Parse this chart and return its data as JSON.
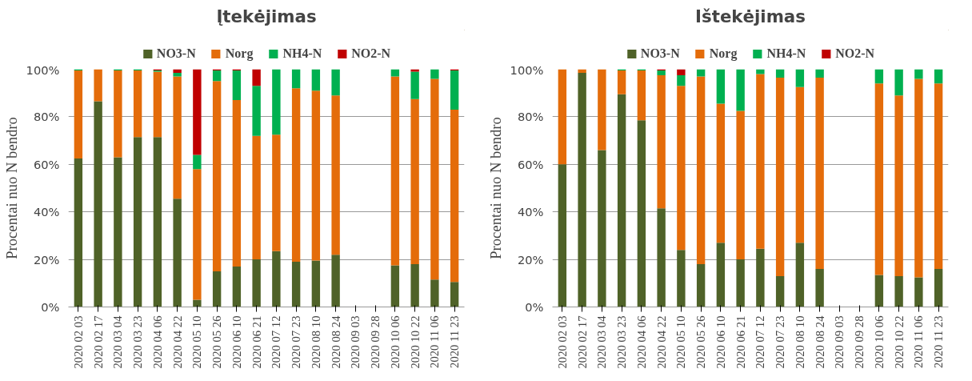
{
  "chart_data": [
    {
      "type": "bar",
      "title": "Įtekėjimas",
      "ylabel": "Procentai nuo N bendro",
      "stacked": true,
      "legend": "top",
      "grid": "y",
      "categories": [
        "2020 02 03",
        "2020 02 17",
        "2020 03 04",
        "2020 03 23",
        "2020 04 06",
        "2020 04 22",
        "2020 05 10",
        "2020 05 26",
        "2020 06 10",
        "2020 06 21",
        "2020 07 12",
        "2020 07 23",
        "2020 08 10",
        "2020 08 24",
        "2020 09 03",
        "2020 09 28",
        "2020 10 06",
        "2020 10 22",
        "2020 11 06",
        "2020 11 23"
      ],
      "ylim": [
        0,
        100
      ],
      "yticks": [
        {
          "value": 0,
          "label": "0%"
        },
        {
          "value": 20,
          "label": "20%"
        },
        {
          "value": 40,
          "label": "40%"
        },
        {
          "value": 60,
          "label": "60%"
        },
        {
          "value": 80,
          "label": "80%"
        },
        {
          "value": 100,
          "label": "100%"
        }
      ],
      "series": [
        {
          "name": "NO3-N",
          "color": "#4f6228",
          "values": [
            62.5,
            86.5,
            63,
            71.5,
            71.5,
            45.5,
            3,
            15,
            17,
            20,
            23.5,
            19,
            19.5,
            22,
            null,
            null,
            17.5,
            18,
            11.5,
            10.5
          ]
        },
        {
          "name": "Norg",
          "color": "#e46c0a",
          "values": [
            37,
            13.5,
            36.5,
            28,
            27.5,
            51.5,
            55,
            80,
            70,
            52,
            49,
            73,
            71.5,
            67,
            null,
            null,
            79.5,
            69.5,
            84.5,
            72.5
          ]
        },
        {
          "name": "NH4-N",
          "color": "#00b050",
          "values": [
            0.5,
            0,
            0.5,
            0.5,
            0.5,
            1.5,
            6,
            4.5,
            12.5,
            21,
            27.5,
            8,
            9,
            11,
            null,
            null,
            3,
            11.5,
            4,
            16.5
          ]
        },
        {
          "name": "NO2-N",
          "color": "#c00000",
          "values": [
            0,
            0,
            0,
            0,
            0.5,
            1.5,
            36,
            0.5,
            0.5,
            7,
            0,
            0,
            0,
            0,
            null,
            null,
            0,
            1,
            0,
            0.5
          ]
        }
      ]
    },
    {
      "type": "bar",
      "title": "Ištekėjimas",
      "ylabel": "Procentai nuo N bendro",
      "stacked": true,
      "legend": "top",
      "grid": "y",
      "categories": [
        "2020 02 03",
        "2020 02 17",
        "2020 03 04",
        "2020 03 23",
        "2020 04 06",
        "2020 04 22",
        "2020 05 10",
        "2020 05 26",
        "2020 06 10",
        "2020 06 21",
        "2020 07 12",
        "2020 07 23",
        "2020 08 10",
        "2020 08 24",
        "2020 09 03",
        "2020 09 28",
        "2020 10 06",
        "2020 10 22",
        "2020 11 06",
        "2020 11 23"
      ],
      "ylim": [
        0,
        100
      ],
      "yticks": [
        {
          "value": 0,
          "label": "0%"
        },
        {
          "value": 20,
          "label": "20%"
        },
        {
          "value": 40,
          "label": "40%"
        },
        {
          "value": 60,
          "label": "60%"
        },
        {
          "value": 80,
          "label": "80%"
        },
        {
          "value": 100,
          "label": "100%"
        }
      ],
      "series": [
        {
          "name": "NO3-N",
          "color": "#4f6228",
          "values": [
            60,
            98.5,
            66,
            89.5,
            78.5,
            41.5,
            24,
            18,
            27,
            20,
            24.5,
            13,
            27,
            16,
            null,
            null,
            13.5,
            13,
            12.5,
            16
          ]
        },
        {
          "name": "Norg",
          "color": "#e46c0a",
          "values": [
            40,
            1.5,
            34,
            10,
            21,
            56,
            69,
            79,
            58.5,
            62.5,
            73.5,
            83.5,
            65.5,
            80.5,
            null,
            null,
            80.5,
            76,
            83.5,
            78
          ]
        },
        {
          "name": "NH4-N",
          "color": "#00b050",
          "values": [
            0,
            0,
            0,
            0.5,
            0.5,
            2,
            4.5,
            3,
            14.5,
            17.5,
            2,
            3.5,
            7.5,
            3.5,
            null,
            null,
            6,
            11,
            4,
            6
          ]
        },
        {
          "name": "NO2-N",
          "color": "#c00000",
          "values": [
            0,
            0,
            0,
            0,
            0,
            0.5,
            2.5,
            0,
            0,
            0,
            0,
            0,
            0,
            0,
            null,
            null,
            0,
            0,
            0,
            0
          ]
        }
      ]
    }
  ]
}
